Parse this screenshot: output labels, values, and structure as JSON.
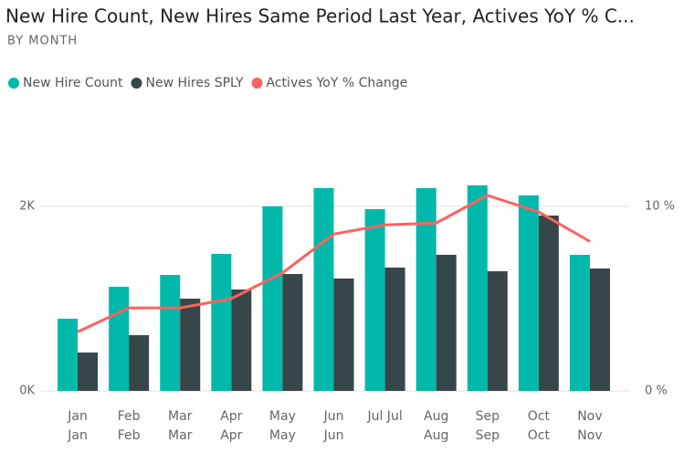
{
  "chart_data": {
    "type": "bar-line",
    "title": "New Hire Count, New Hires Same Period Last Year, Actives YoY % C...",
    "subtitle": "BY MONTH",
    "categories": [
      [
        "Jan",
        "Jan"
      ],
      [
        "Feb",
        "Feb"
      ],
      [
        "Mar",
        "Mar"
      ],
      [
        "Apr",
        "Apr"
      ],
      [
        "May",
        "May"
      ],
      [
        "Jun",
        "Jun"
      ],
      [
        "Jul Jul"
      ],
      [
        "Aug",
        "Aug"
      ],
      [
        "Sep",
        "Sep"
      ],
      [
        "Oct",
        "Oct"
      ],
      [
        "Nov",
        "Nov"
      ]
    ],
    "series": [
      {
        "name": "New Hire Count",
        "color": "#01B8AA",
        "type": "bar",
        "values": [
          782,
          1129,
          1257,
          1485,
          2000,
          2198,
          1970,
          2198,
          2228,
          2119,
          1475
        ]
      },
      {
        "name": "New Hires SPLY",
        "color": "#374649",
        "type": "bar",
        "values": [
          416,
          604,
          1000,
          1099,
          1267,
          1218,
          1337,
          1475,
          1297,
          1901,
          1327
        ]
      },
      {
        "name": "Actives YoY % Change",
        "color": "#FD625E",
        "type": "line",
        "axis": "y2",
        "values": [
          3.2,
          4.5,
          4.5,
          5.0,
          6.4,
          8.5,
          9.0,
          9.1,
          10.6,
          9.7,
          8.1
        ]
      }
    ],
    "ylim": [
      0,
      3000
    ],
    "yticks": [
      {
        "value": 0,
        "label": "0K"
      },
      {
        "value": 2000,
        "label": "2K"
      }
    ],
    "y2lim": [
      0,
      15
    ],
    "y2ticks": [
      {
        "value": 0,
        "label": "0 %"
      },
      {
        "value": 10,
        "label": "10 %"
      }
    ],
    "grid": true
  }
}
